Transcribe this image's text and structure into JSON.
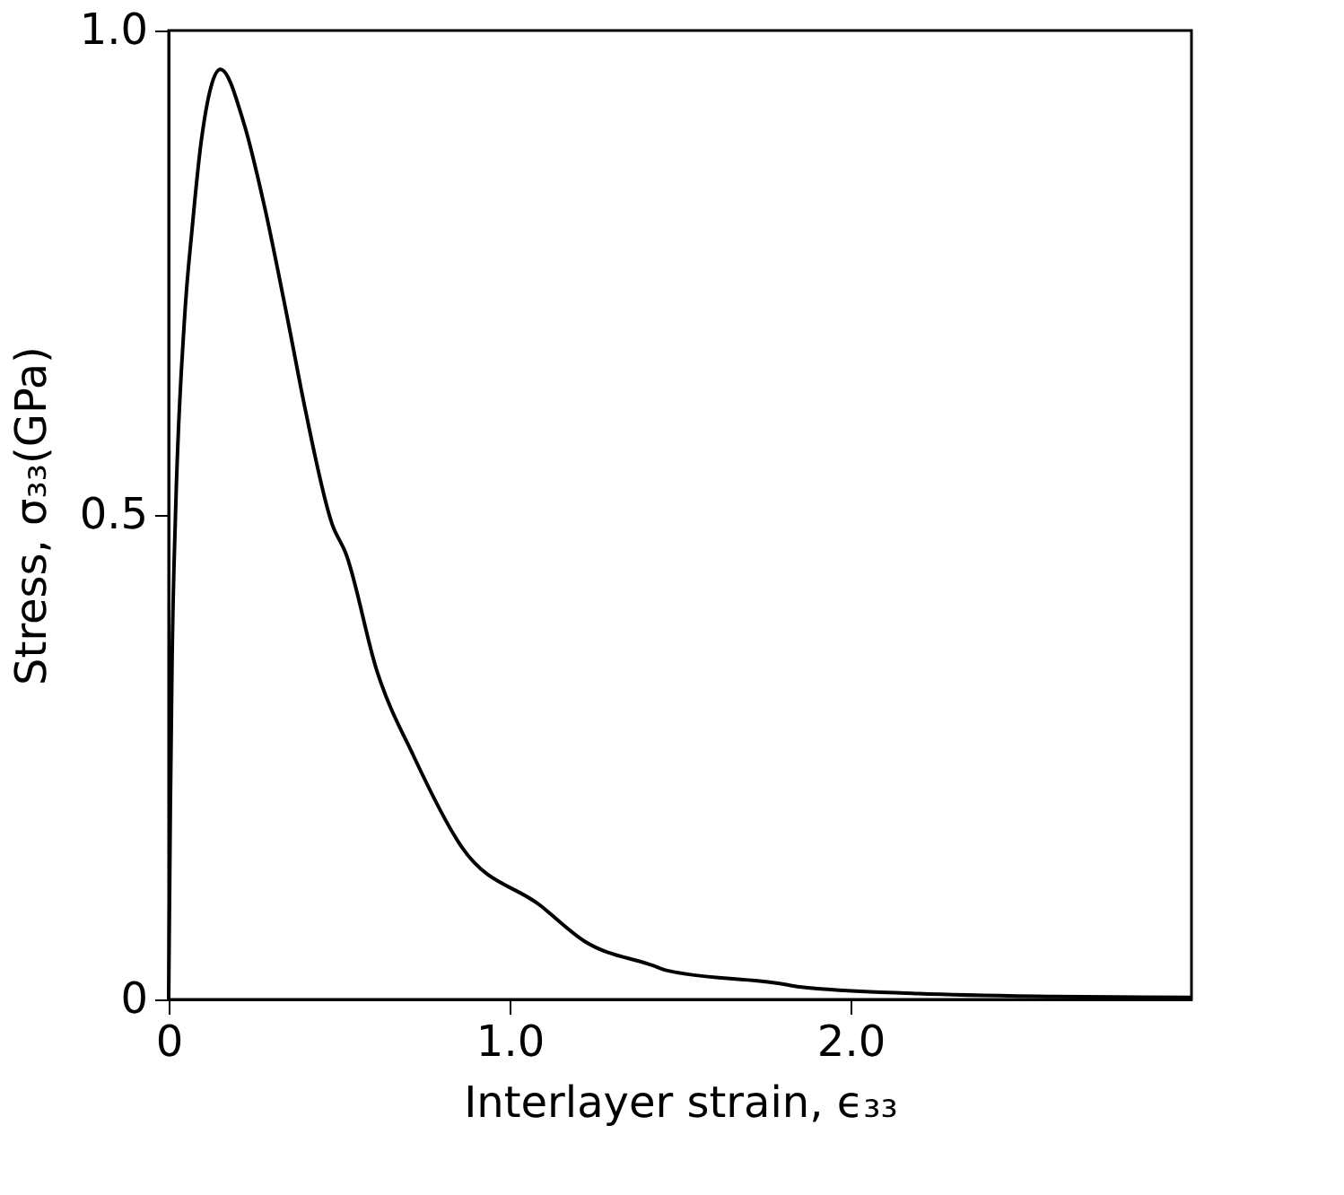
{
  "chart_data": {
    "type": "line",
    "xlabel": "Interlayer strain, ϵ₃₃",
    "ylabel": "Stress, σ₃₃(GPa)",
    "x": [
      0,
      0.005,
      0.01,
      0.02,
      0.046,
      0.07,
      0.096,
      0.152,
      0.22,
      0.28,
      0.35,
      0.4,
      0.48,
      0.52,
      0.61,
      0.72,
      0.86,
      1.09,
      1.22,
      1.42,
      1.46,
      1.8,
      1.85,
      2.2,
      2.6,
      3.0
    ],
    "series": [
      {
        "color": "#000000",
        "values": [
          0,
          0.2,
          0.35,
          0.5,
          0.7,
          0.8,
          0.887,
          0.96,
          0.905,
          0.82,
          0.7,
          0.61,
          0.49,
          0.46,
          0.34,
          0.25,
          0.157,
          0.097,
          0.06,
          0.035,
          0.03,
          0.016,
          0.013,
          0.006,
          0.003,
          0.002
        ]
      }
    ],
    "xlim": [
      0,
      3.0
    ],
    "xticks": [
      0,
      {
        "value": 1.0,
        "label": "1.0"
      },
      {
        "value": 2.0,
        "label": "2.0"
      }
    ],
    "ylim": [
      0,
      1.0
    ],
    "yticks": [
      0,
      0.5,
      {
        "value": 1.0,
        "label": "1.0"
      }
    ],
    "grid": false,
    "marker": "none",
    "line_style": "solid"
  }
}
